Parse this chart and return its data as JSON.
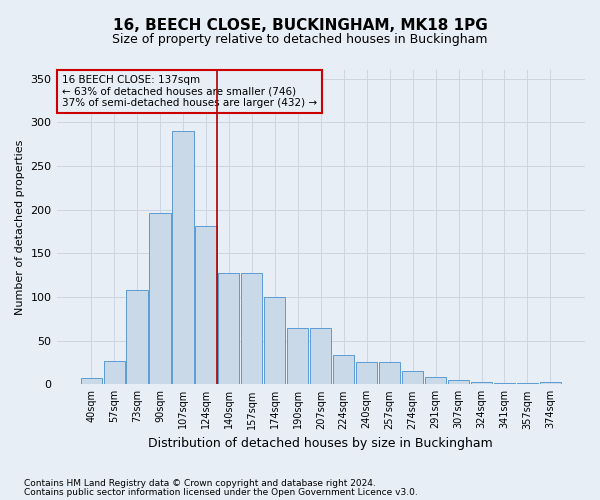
{
  "title": "16, BEECH CLOSE, BUCKINGHAM, MK18 1PG",
  "subtitle": "Size of property relative to detached houses in Buckingham",
  "xlabel": "Distribution of detached houses by size in Buckingham",
  "ylabel": "Number of detached properties",
  "footnote1": "Contains HM Land Registry data © Crown copyright and database right 2024.",
  "footnote2": "Contains public sector information licensed under the Open Government Licence v3.0.",
  "categories": [
    "40sqm",
    "57sqm",
    "73sqm",
    "90sqm",
    "107sqm",
    "124sqm",
    "140sqm",
    "157sqm",
    "174sqm",
    "190sqm",
    "207sqm",
    "224sqm",
    "240sqm",
    "257sqm",
    "274sqm",
    "291sqm",
    "307sqm",
    "324sqm",
    "341sqm",
    "357sqm",
    "374sqm"
  ],
  "values": [
    7,
    27,
    108,
    196,
    290,
    181,
    128,
    128,
    100,
    65,
    65,
    33,
    25,
    25,
    15,
    8,
    5,
    3,
    2,
    1,
    3
  ],
  "bar_color": "#c9d9e8",
  "bar_edge_color": "#5b9bd5",
  "grid_color": "#ccd5e0",
  "background_color": "#e8eef5",
  "vline_position": 5.5,
  "vline_color": "#aa0000",
  "annotation_text": "16 BEECH CLOSE: 137sqm\n← 63% of detached houses are smaller (746)\n37% of semi-detached houses are larger (432) →",
  "annotation_box_color": "#cc0000",
  "ylim": [
    0,
    360
  ],
  "yticks": [
    0,
    50,
    100,
    150,
    200,
    250,
    300,
    350
  ]
}
